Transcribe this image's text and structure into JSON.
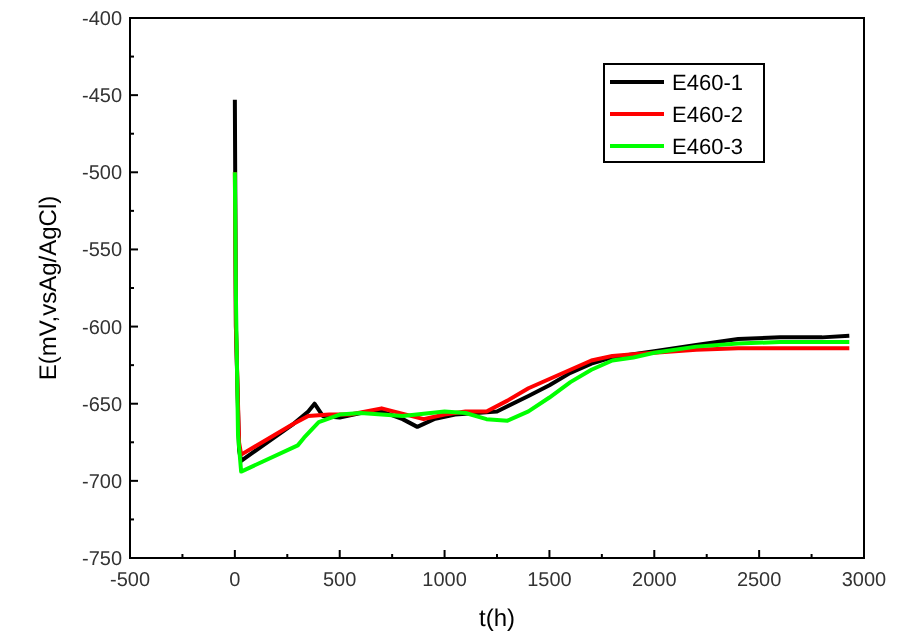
{
  "chart_data": {
    "type": "line",
    "xlabel": "t(h)",
    "ylabel": "E(mV,vsAg/AgCl)",
    "xlim": [
      -500,
      3000
    ],
    "xticks": [
      -500,
      0,
      500,
      1000,
      1500,
      2000,
      2500,
      3000
    ],
    "ylim": [
      -750,
      -400
    ],
    "yticks": [
      -750,
      -700,
      -650,
      -600,
      -550,
      -500,
      -450,
      -400
    ],
    "grid": false,
    "legend": "top right",
    "marker": "none",
    "line_style": "solid",
    "series": [
      {
        "name": "E460-1",
        "color": "#000000",
        "x": [
          0,
          5,
          20,
          30,
          280,
          350,
          380,
          420,
          500,
          600,
          700,
          800,
          870,
          950,
          1050,
          1150,
          1250,
          1400,
          1500,
          1600,
          1700,
          1800,
          1900,
          2000,
          2200,
          2400,
          2600,
          2800,
          2930
        ],
        "values": [
          -453,
          -600,
          -680,
          -687,
          -663,
          -655,
          -650,
          -658,
          -659,
          -656,
          -655,
          -660,
          -665,
          -660,
          -657,
          -656,
          -655,
          -645,
          -638,
          -630,
          -624,
          -620,
          -618,
          -616,
          -612,
          -608,
          -607,
          -607,
          -606
        ]
      },
      {
        "name": "E460-2",
        "color": "#ff0000",
        "x": [
          0,
          5,
          20,
          30,
          280,
          350,
          450,
          550,
          700,
          900,
          1000,
          1100,
          1200,
          1300,
          1400,
          1500,
          1600,
          1700,
          1800,
          1900,
          2000,
          2200,
          2400,
          2600,
          2930
        ],
        "values": [
          -500,
          -600,
          -675,
          -683,
          -663,
          -658,
          -657,
          -657,
          -653,
          -660,
          -657,
          -655,
          -655,
          -648,
          -640,
          -634,
          -628,
          -622,
          -619,
          -618,
          -617,
          -615,
          -614,
          -614,
          -614
        ]
      },
      {
        "name": "E460-3",
        "color": "#00ff00",
        "x": [
          0,
          5,
          15,
          30,
          300,
          330,
          400,
          500,
          600,
          800,
          1000,
          1100,
          1200,
          1300,
          1400,
          1500,
          1600,
          1700,
          1800,
          1900,
          2000,
          2200,
          2400,
          2600,
          2930
        ],
        "values": [
          -500,
          -580,
          -670,
          -694,
          -677,
          -672,
          -662,
          -657,
          -656,
          -658,
          -655,
          -656,
          -660,
          -661,
          -655,
          -646,
          -636,
          -628,
          -622,
          -620,
          -617,
          -613,
          -611,
          -610,
          -610
        ]
      }
    ]
  }
}
